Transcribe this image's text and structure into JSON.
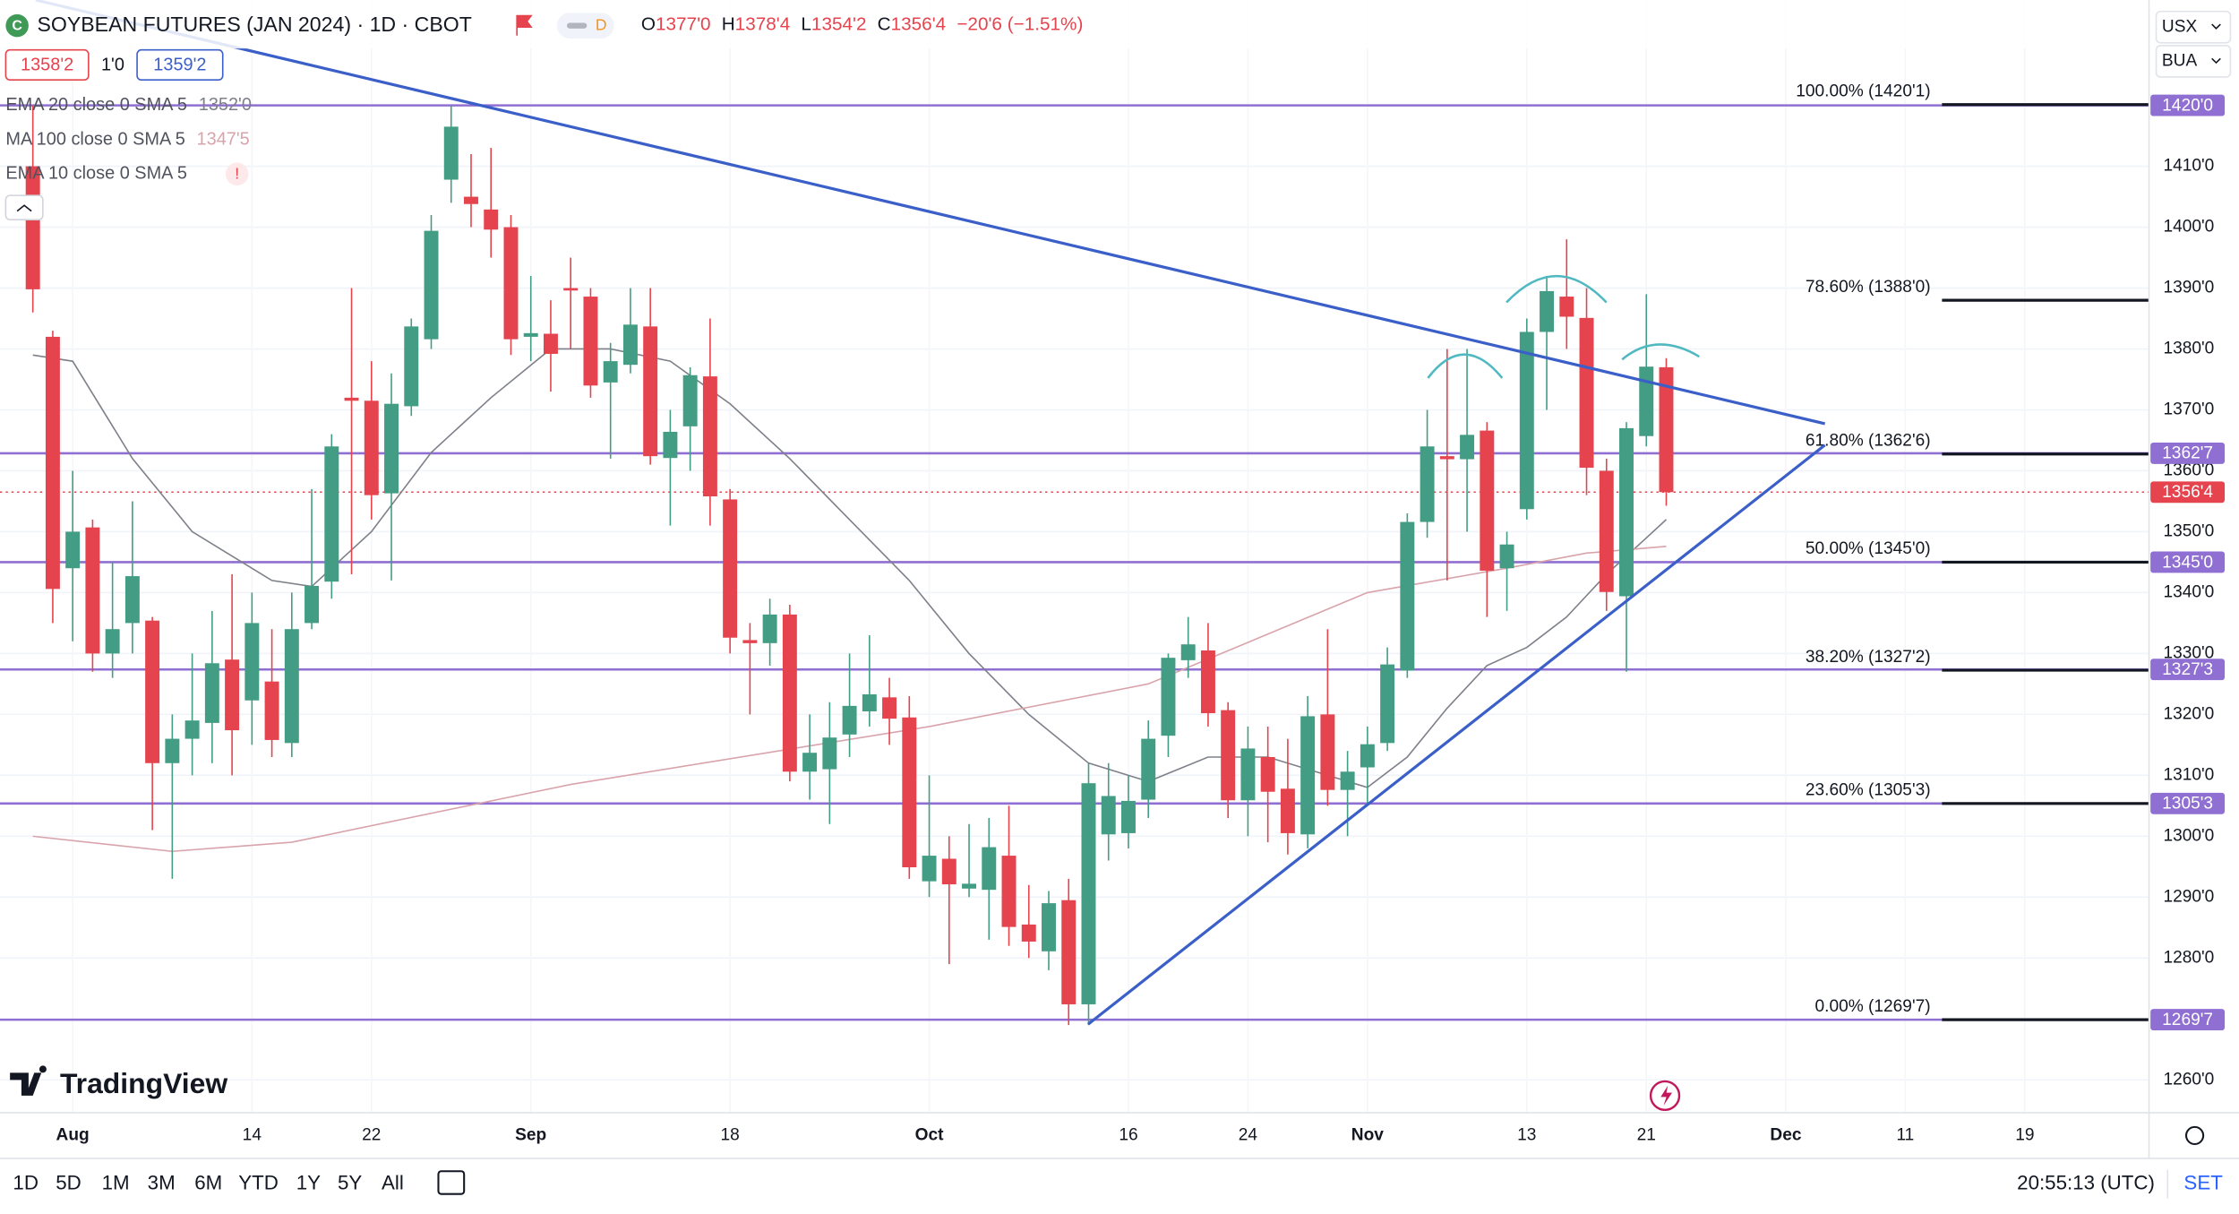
{
  "chart_data": {
    "type": "candlestick",
    "up_color": "#429d84",
    "down_color": "#e5434d",
    "grid": true,
    "categories": [
      null,
      null,
      "Aug",
      null,
      null,
      null,
      null,
      null,
      null,
      null,
      null,
      "14",
      null,
      null,
      null,
      null,
      null,
      "22",
      null,
      null,
      null,
      null,
      null,
      null,
      null,
      "Sep",
      null,
      null,
      null,
      null,
      null,
      null,
      null,
      null,
      null,
      "18",
      null,
      null,
      null,
      null,
      null,
      null,
      null,
      null,
      null,
      "Oct",
      null,
      null,
      null,
      null,
      null,
      null,
      null,
      null,
      null,
      "16",
      null,
      null,
      null,
      null,
      null,
      "24",
      null,
      null,
      null,
      null,
      null,
      "Nov",
      null,
      null,
      null,
      null,
      null,
      null,
      null,
      "13",
      null,
      null,
      null,
      null,
      null,
      "21",
      null,
      null,
      null,
      null,
      null,
      null,
      "Dec",
      null,
      null,
      null,
      null,
      null,
      "11",
      null,
      null,
      null,
      null,
      null,
      "19",
      null,
      null,
      null,
      null,
      null,
      null
    ],
    "open": [
      1410,
      1382,
      1344,
      1350.7,
      1330,
      1335,
      1335.4,
      1312,
      1316,
      1318.6,
      1329,
      1322.3,
      1325.4,
      1315.3,
      1335,
      1341.8,
      1372,
      1371.5,
      1356.3,
      1370.6,
      1381.6,
      1407.8,
      1405,
      1402.9,
      1400,
      1382,
      1382.5,
      1390,
      1388.6,
      1374.5,
      1377.4,
      1383.7,
      1362.1,
      1367.3,
      1375.5,
      1355.3,
      1332.2,
      1331.7,
      1336.4,
      1310.6,
      1311,
      1316.7,
      1320.5,
      1322.8,
      1319.5,
      1292.6,
      1296.3,
      1291.4,
      1291.2,
      1296.8,
      1285.5,
      1281.1,
      1289.5,
      1272.4,
      1300.3,
      1300.5,
      1306,
      1316.5,
      1328.9,
      1330.5,
      1320.7,
      1305.9,
      1313,
      1307.8,
      1300.3,
      1320,
      1307.6,
      1311.3,
      1315.3,
      1327.2,
      1351.6,
      1362.4,
      1361.9,
      1366.6,
      1344,
      1353.7,
      1382.8,
      1388.6,
      1385.1,
      1360,
      1339.4,
      1365.7,
      1377,
      null,
      null,
      null,
      null,
      null,
      null,
      null,
      null,
      null,
      null,
      null,
      null,
      null,
      null,
      null,
      null,
      null,
      null,
      null,
      null,
      null,
      null,
      null,
      null
    ],
    "high": [
      1420,
      1383,
      1360,
      1352,
      1345,
      1355,
      1336,
      1320,
      1330,
      1337,
      1343,
      1340,
      1334,
      1340,
      1357,
      1366,
      1390,
      1378,
      1376,
      1385,
      1402,
      1420,
      1412,
      1413,
      1402,
      1392,
      1388,
      1395,
      1390,
      1381,
      1390,
      1390,
      1370,
      1377,
      1385,
      1357,
      1335,
      1339,
      1338,
      1320,
      1322,
      1330,
      1333,
      1326,
      1323,
      1310,
      1300,
      1302,
      1303,
      1305,
      1292,
      1291,
      1293,
      1312,
      1312,
      1310,
      1319,
      1330,
      1336,
      1335,
      1322,
      1318,
      1318,
      1316,
      1323,
      1334,
      1314,
      1318,
      1331,
      1353,
      1370,
      1380,
      1380,
      1368,
      1350,
      1385,
      1392,
      1398,
      1390,
      1362,
      1368,
      1389,
      1378.5,
      null,
      null,
      null,
      null,
      null,
      null,
      null,
      null,
      null,
      null,
      null,
      null,
      null,
      null,
      null,
      null,
      null,
      null,
      null,
      null,
      null,
      null,
      null,
      null
    ],
    "low": [
      1386,
      1335,
      1332,
      1327,
      1326,
      1330,
      1301,
      1293,
      1310,
      1312,
      1310,
      1315,
      1313,
      1313,
      1334,
      1339,
      1343,
      1352,
      1342,
      1369,
      1380,
      1404,
      1400,
      1395,
      1379,
      1378,
      1373,
      1380,
      1372,
      1362,
      1376,
      1361,
      1351,
      1360,
      1351,
      1330,
      1320,
      1328,
      1309,
      1306,
      1302,
      1313,
      1318,
      1315,
      1293,
      1290,
      1279,
      1290,
      1283,
      1282,
      1280,
      1278,
      1269,
      1269,
      1296,
      1298,
      1303,
      1313,
      1326,
      1318,
      1303,
      1300,
      1299,
      1297,
      1298,
      1305,
      1300,
      1305,
      1314,
      1326,
      1349,
      1342,
      1350,
      1336,
      1337,
      1352,
      1370,
      1380,
      1356,
      1337,
      1327,
      1364,
      1354.25,
      null,
      null,
      null,
      null,
      null,
      null,
      null,
      null,
      null,
      null,
      null,
      null,
      null,
      null,
      null,
      null,
      null,
      null,
      null,
      null,
      null,
      null,
      null,
      null
    ],
    "close": [
      1389.8,
      1340.6,
      1350,
      1330,
      1334,
      1342.7,
      1312,
      1316,
      1319,
      1328.4,
      1317.4,
      1335,
      1315.8,
      1334,
      1341.1,
      1364,
      1371.5,
      1356,
      1371,
      1383.7,
      1399.4,
      1416.5,
      1403.8,
      1399.6,
      1381.6,
      1382.6,
      1379.2,
      1389.6,
      1374,
      1378,
      1384,
      1362.4,
      1366.4,
      1375.7,
      1355.8,
      1332.6,
      1331.7,
      1336.4,
      1310.6,
      1313.7,
      1316.2,
      1321.4,
      1323.3,
      1319.3,
      1294.9,
      1296.8,
      1292.1,
      1292.2,
      1298.2,
      1285.1,
      1282.7,
      1289,
      1272.4,
      1308.7,
      1306.6,
      1305.8,
      1316,
      1329.3,
      1331.5,
      1320.2,
      1305.9,
      1314.4,
      1307.3,
      1300.5,
      1319.7,
      1307.6,
      1310.6,
      1315.1,
      1328.2,
      1351.6,
      1364,
      1361.9,
      1365.9,
      1343.6,
      1347.9,
      1382.8,
      1389.5,
      1385.3,
      1360.5,
      1340.1,
      1367,
      1377.1,
      1356.5,
      null,
      null,
      null,
      null,
      null,
      null,
      null,
      null,
      null,
      null,
      null,
      null,
      null,
      null,
      null,
      null,
      null,
      null,
      null,
      null,
      null,
      null,
      null,
      null
    ],
    "ylim": [
      1254.6,
      1437.3
    ],
    "yticks": [
      {
        "value": 1260,
        "label": "1260'0"
      },
      {
        "value": 1280,
        "label": "1280'0"
      },
      {
        "value": 1290,
        "label": "1290'0"
      },
      {
        "value": 1300,
        "label": "1300'0"
      },
      {
        "value": 1310,
        "label": "1310'0"
      },
      {
        "value": 1320,
        "label": "1320'0"
      },
      {
        "value": 1330,
        "label": "1330'0"
      },
      {
        "value": 1340,
        "label": "1340'0"
      },
      {
        "value": 1350,
        "label": "1350'0"
      },
      {
        "value": 1360,
        "label": "1360'0"
      },
      {
        "value": 1370,
        "label": "1370'0"
      },
      {
        "value": 1380,
        "label": "1380'0"
      },
      {
        "value": 1390,
        "label": "1390'0"
      },
      {
        "value": 1400,
        "label": "1400'0"
      },
      {
        "value": 1410,
        "label": "1410'0"
      }
    ],
    "overlays": [
      {
        "name": "EMA 20 close 0 SMA 5",
        "last_label": "1352'0",
        "color": "#7d8089",
        "x": [
          0,
          2,
          5,
          8,
          12,
          14,
          17,
          20,
          23,
          26,
          29,
          32,
          35,
          38,
          41,
          44,
          47,
          50,
          53,
          56,
          59,
          62,
          65,
          67,
          69,
          71,
          73,
          75,
          77,
          79,
          81,
          82
        ],
        "values": [
          1379,
          1378,
          1362,
          1350,
          1342,
          1341,
          1350,
          1363,
          1372,
          1380,
          1380,
          1378,
          1371,
          1362,
          1352,
          1342,
          1330,
          1320,
          1312,
          1309,
          1313,
          1313,
          1310,
          1308,
          1313,
          1321,
          1328,
          1331,
          1336,
          1343,
          1349,
          1352
        ]
      },
      {
        "name": "MA 100 close 0 SMA 5",
        "last_label": "1347'5",
        "color": "#d9a3ab",
        "x": [
          0,
          7,
          13,
          27,
          45,
          56,
          67,
          74,
          78,
          82
        ],
        "values": [
          1300,
          1297.5,
          1299,
          1308.5,
          1318,
          1325,
          1340,
          1344,
          1346.5,
          1347.6
        ]
      }
    ],
    "fib_levels": [
      {
        "value": 1420.125,
        "label": "100.00% (1420'1)"
      },
      {
        "value": 1388,
        "label": "78.60% (1388'0)"
      },
      {
        "value": 1362.75,
        "label": "61.80% (1362'6)"
      },
      {
        "value": 1345,
        "label": "50.00% (1345'0)"
      },
      {
        "value": 1327.25,
        "label": "38.20% (1327'2)"
      },
      {
        "value": 1305.375,
        "label": "23.60% (1305'3)"
      },
      {
        "value": 1269.875,
        "label": "0.00% (1269'7)"
      }
    ],
    "price_tags": [
      {
        "value": 1420,
        "label": "1420'0",
        "color": "#8f6fd1",
        "line": "solid"
      },
      {
        "value": 1362.875,
        "label": "1362'7",
        "color": "#8f6fd1",
        "line": "solid"
      },
      {
        "value": 1356.5,
        "label": "1356'4",
        "color": "#e5434d",
        "line": "dotted"
      },
      {
        "value": 1345,
        "label": "1345'0",
        "color": "#8f6fd1",
        "line": "solid"
      },
      {
        "value": 1327.375,
        "label": "1327'3",
        "color": "#8f6fd1",
        "line": "solid"
      },
      {
        "value": 1305.375,
        "label": "1305'3",
        "color": "#8f6fd1",
        "line": "solid"
      },
      {
        "value": 1269.875,
        "label": "1269'7",
        "color": "#8f6fd1",
        "line": "solid"
      }
    ]
  },
  "ui": {
    "title": "SOYBEAN FUTURES (JAN 2024) · 1D · CBOT",
    "logo_letter": "C",
    "delay": "D",
    "ohlc": {
      "o_label": "O",
      "o": "1377'0",
      "h_label": "H",
      "h": "1378'4",
      "l_label": "L",
      "l": "1354'2",
      "c_label": "C",
      "c": "1356'4",
      "change": "−20'6 (−1.51%)"
    },
    "sell": "1358'2",
    "spread": "1'0",
    "buy": "1359'2",
    "extra_indicator": "EMA 10 close 0 SMA 5",
    "warning": "!",
    "currency": "USX",
    "unit": "BUA",
    "brand": "TradingView",
    "timeframes": [
      "1D",
      "5D",
      "1M",
      "3M",
      "6M",
      "YTD",
      "1Y",
      "5Y",
      "All"
    ],
    "clock": "20:55:13 (UTC)",
    "settings": "SET"
  }
}
